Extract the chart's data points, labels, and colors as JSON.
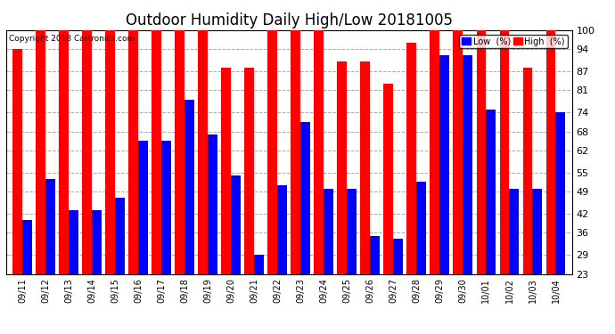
{
  "title": "Outdoor Humidity Daily High/Low 20181005",
  "copyright": "Copyright 2018 Cartronics.com",
  "dates": [
    "09/11",
    "09/12",
    "09/13",
    "09/14",
    "09/15",
    "09/16",
    "09/17",
    "09/18",
    "09/19",
    "09/20",
    "09/21",
    "09/22",
    "09/23",
    "09/24",
    "09/25",
    "09/26",
    "09/27",
    "09/28",
    "09/29",
    "09/30",
    "10/01",
    "10/02",
    "10/03",
    "10/04"
  ],
  "high": [
    94,
    100,
    100,
    100,
    100,
    100,
    100,
    100,
    100,
    88,
    88,
    100,
    100,
    100,
    90,
    90,
    83,
    96,
    100,
    100,
    100,
    100,
    88,
    100
  ],
  "low": [
    40,
    53,
    43,
    43,
    47,
    65,
    65,
    78,
    67,
    54,
    29,
    51,
    71,
    50,
    50,
    35,
    34,
    52,
    92,
    92,
    75,
    50,
    50,
    74
  ],
  "high_color": "#ff0000",
  "low_color": "#0000ff",
  "bg_color": "#ffffff",
  "grid_color": "#aaaaaa",
  "yticks": [
    23,
    29,
    36,
    42,
    49,
    55,
    62,
    68,
    74,
    81,
    87,
    94,
    100
  ],
  "ymin": 23,
  "ymax": 100,
  "bar_width": 0.42,
  "title_fontsize": 12,
  "legend_low_label": "Low  (%)",
  "legend_high_label": "High  (%)"
}
